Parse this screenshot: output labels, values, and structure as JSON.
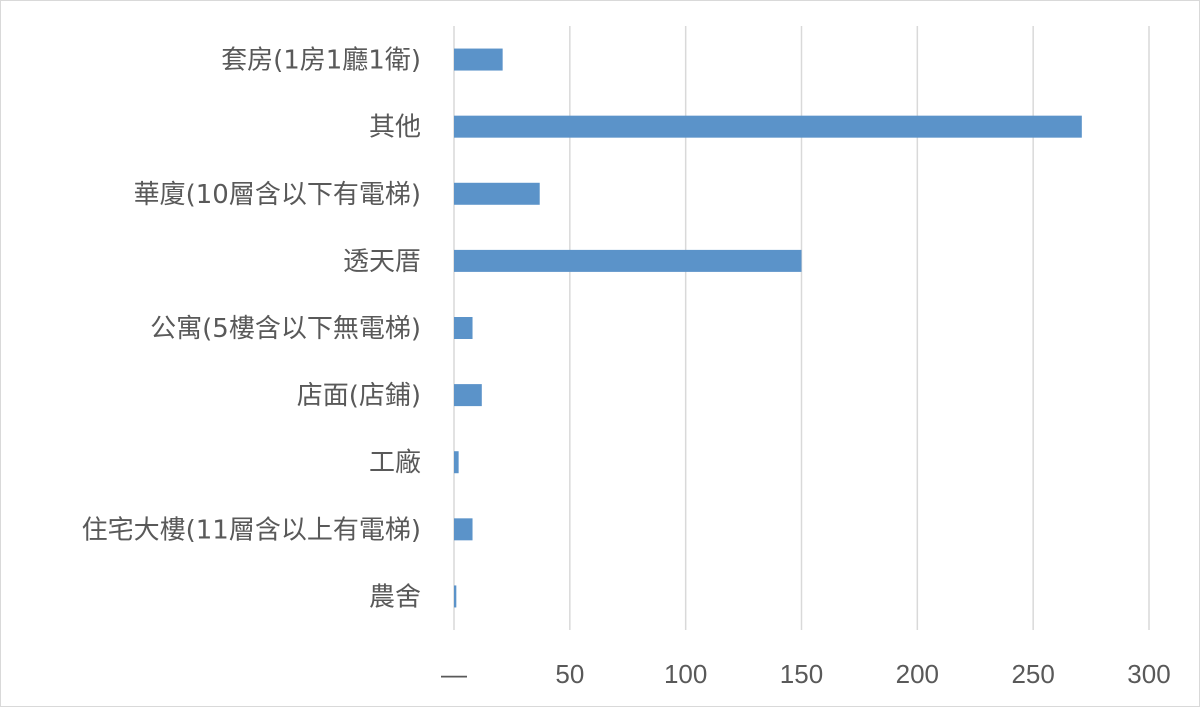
{
  "chart_data": {
    "type": "bar",
    "orientation": "horizontal",
    "categories": [
      "套房(1房1廳1衛)",
      "其他",
      "華廈(10層含以下有電梯)",
      "透天厝",
      "公寓(5樓含以下無電梯)",
      "店面(店鋪)",
      "工廠",
      "住宅大樓(11層含以上有電梯)",
      "農舍"
    ],
    "values": [
      21,
      271,
      37,
      150,
      8,
      12,
      2,
      8,
      1
    ],
    "xticks": [
      "—",
      "50",
      "100",
      "150",
      "200",
      "250",
      "300"
    ],
    "xlim": [
      0,
      300
    ],
    "bar_color": "#5b93c9",
    "grid": true,
    "legend": "none",
    "title": "",
    "xlabel": "",
    "ylabel": ""
  }
}
